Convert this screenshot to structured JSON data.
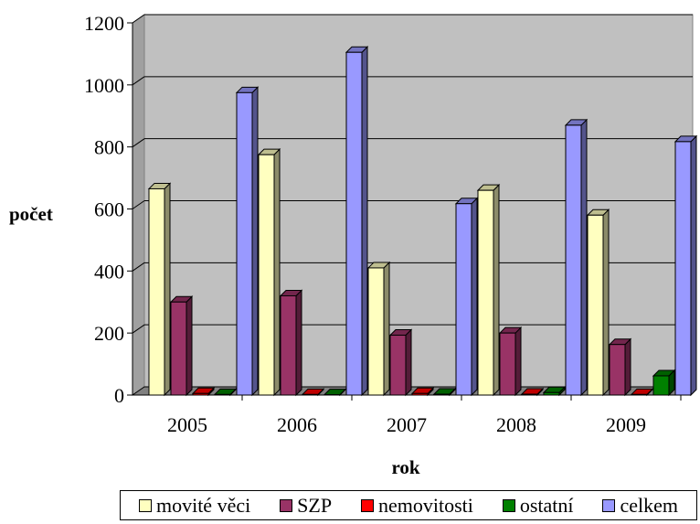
{
  "chart_data": {
    "type": "bar",
    "title": "",
    "xlabel": "rok",
    "ylabel": "počet",
    "categories": [
      "2005",
      "2006",
      "2007",
      "2008",
      "2009"
    ],
    "ylim": [
      0,
      1200
    ],
    "yticks": [
      "0",
      "200",
      "400",
      "600",
      "800",
      "1000",
      "1200"
    ],
    "grid": true,
    "legend_position": "bottom",
    "series": [
      {
        "name": "movité věci",
        "color": "#ffffc0",
        "values": [
          665,
          775,
          410,
          660,
          580
        ]
      },
      {
        "name": "SZP",
        "color": "#993366",
        "values": [
          300,
          320,
          193,
          200,
          163
        ]
      },
      {
        "name": "nemovitosti",
        "color": "#ff0000",
        "values": [
          5,
          2,
          5,
          3,
          2
        ]
      },
      {
        "name": "ostatní",
        "color": "#008000",
        "values": [
          2,
          1,
          3,
          8,
          62
        ]
      },
      {
        "name": "celkem",
        "color": "#9999ff",
        "values": [
          975,
          1105,
          617,
          870,
          817
        ]
      }
    ]
  }
}
